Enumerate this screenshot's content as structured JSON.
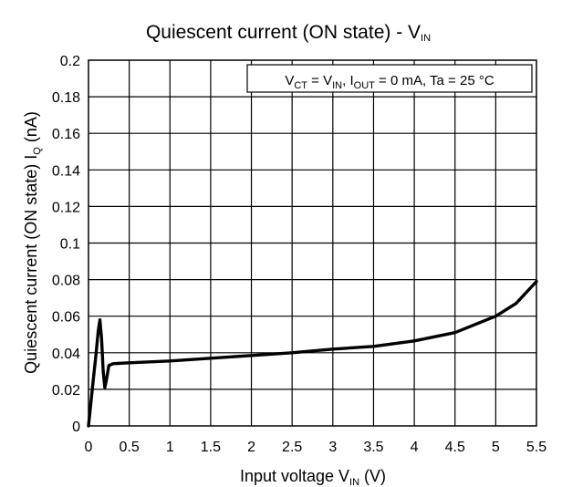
{
  "chart_data": {
    "type": "line",
    "title": "Quiescent current (ON state) - V",
    "title_sub": "IN",
    "xlabel": "Input voltage V",
    "xlabel_sub": "IN",
    "xlabel_unit": " (V)",
    "ylabel": "Quiescent current (ON state) I",
    "ylabel_sub": "Q",
    "ylabel_unit": " (nA)",
    "xlim": [
      0,
      5.5
    ],
    "ylim": [
      0,
      0.2
    ],
    "x_ticks": [
      "0",
      "0.5",
      "1",
      "1.5",
      "2",
      "2.5",
      "3",
      "3.5",
      "4",
      "4.5",
      "5",
      "5.5"
    ],
    "y_ticks": [
      "0",
      "0.02",
      "0.04",
      "0.06",
      "0.08",
      "0.1",
      "0.12",
      "0.14",
      "0.16",
      "0.18",
      "0.2"
    ],
    "grid": true,
    "annotation": {
      "parts": [
        {
          "t": "V"
        },
        {
          "t": "CT",
          "sub": true
        },
        {
          "t": " = V"
        },
        {
          "t": "IN",
          "sub": true
        },
        {
          "t": ", I"
        },
        {
          "t": "OUT",
          "sub": true
        },
        {
          "t": " = 0 mA, Ta = 25 °C"
        }
      ],
      "placement": "top-right"
    },
    "series": [
      {
        "x": [
          0,
          0.03,
          0.06,
          0.09,
          0.12,
          0.14,
          0.16,
          0.18,
          0.2,
          0.22,
          0.25,
          0.3,
          0.5,
          1.0,
          1.5,
          2.0,
          2.5,
          3.0,
          3.5,
          4.0,
          4.5,
          5.0,
          5.25,
          5.5
        ],
        "y": [
          0.0,
          0.013,
          0.026,
          0.038,
          0.052,
          0.058,
          0.048,
          0.03,
          0.021,
          0.025,
          0.033,
          0.034,
          0.0345,
          0.0355,
          0.037,
          0.0385,
          0.04,
          0.042,
          0.0435,
          0.0465,
          0.051,
          0.06,
          0.067,
          0.079
        ]
      }
    ]
  }
}
